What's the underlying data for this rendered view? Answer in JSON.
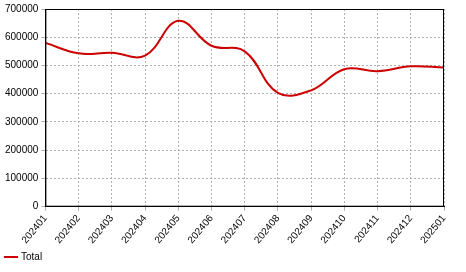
{
  "chart_data": {
    "type": "line",
    "categories": [
      "202401",
      "202402",
      "202403",
      "202404",
      "202405",
      "202406",
      "202407",
      "202408",
      "202409",
      "202410",
      "202411",
      "202412",
      "202501"
    ],
    "series": [
      {
        "name": "Total",
        "color": "#cc0000",
        "values": [
          580000,
          543000,
          545000,
          535000,
          658000,
          570000,
          550000,
          403000,
          412000,
          487000,
          480000,
          497000,
          493000
        ]
      }
    ],
    "ylim": [
      0,
      700000
    ],
    "yticks": [
      0,
      100000,
      200000,
      300000,
      400000,
      500000,
      600000,
      700000
    ],
    "grid": true,
    "legend": "bottom"
  }
}
